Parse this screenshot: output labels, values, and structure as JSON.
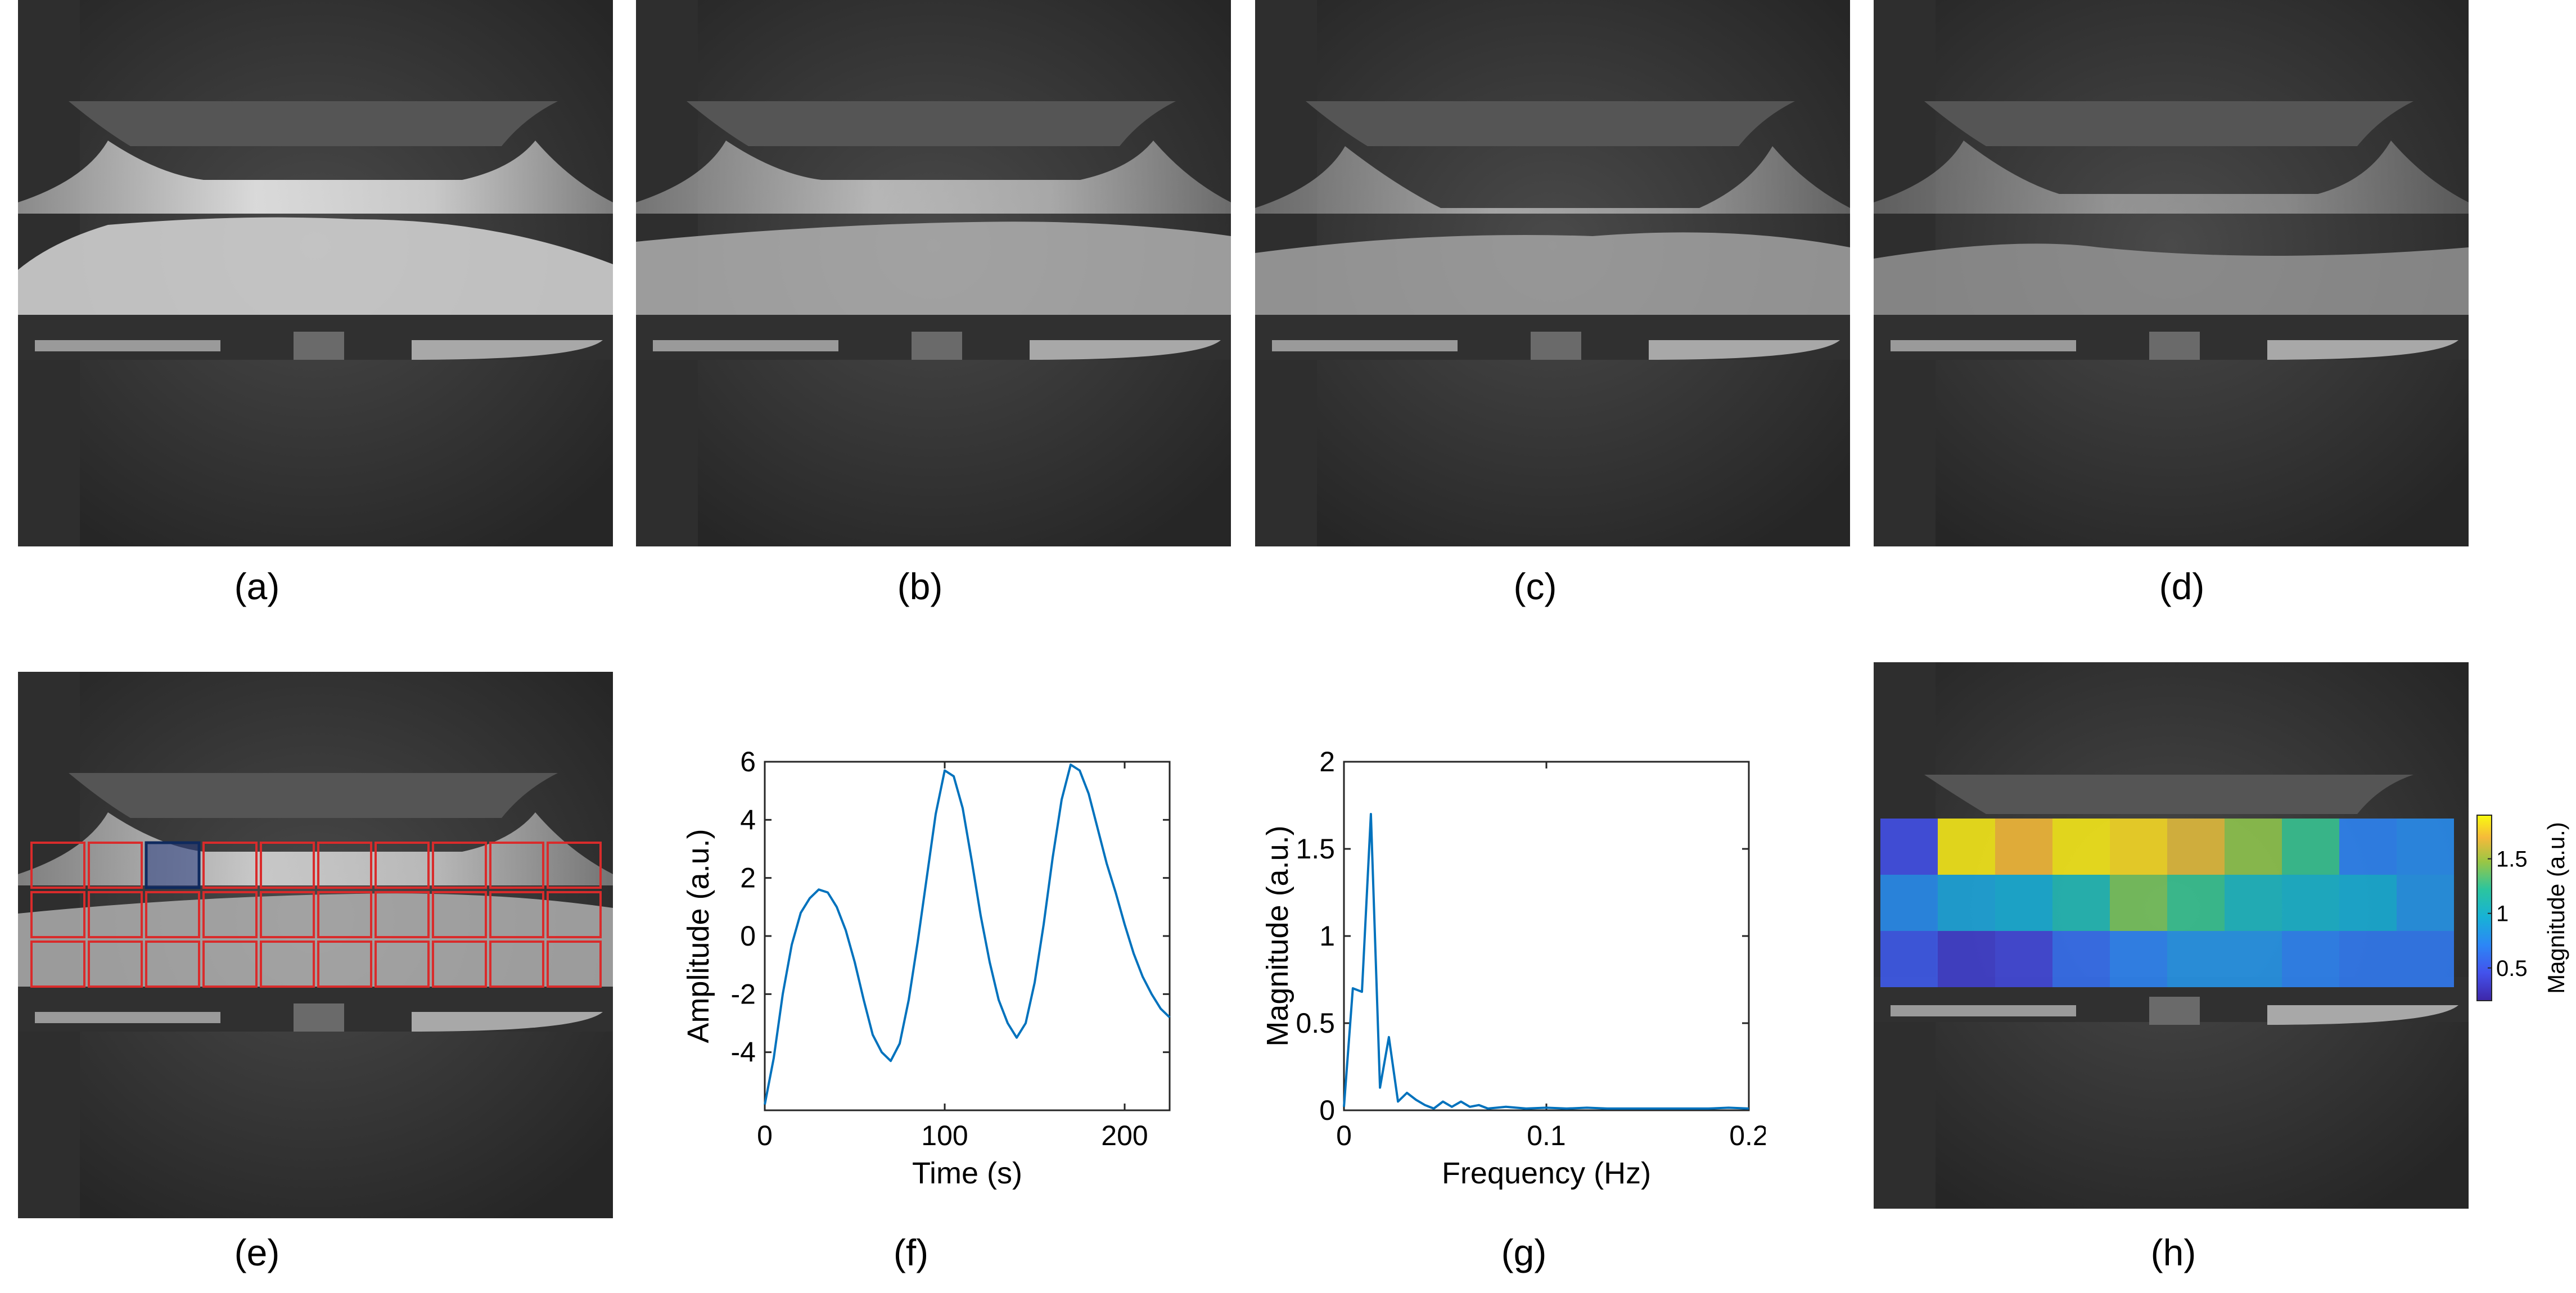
{
  "captions": {
    "a": "(a)",
    "b": "(b)",
    "c": "(c)",
    "d": "(d)",
    "e": "(e)",
    "f": "(f)",
    "g": "(g)",
    "h": "(h)"
  },
  "chart_data": [
    {
      "id": "f",
      "type": "line",
      "xlabel": "Time (s)",
      "ylabel": "Amplitude (a.u.)",
      "xlim": [
        0,
        225
      ],
      "ylim": [
        -6,
        6
      ],
      "xticks": [
        "0",
        "100",
        "200"
      ],
      "yticks": [
        "6",
        "4",
        "2",
        "0",
        "-2",
        "-4"
      ],
      "series": [
        {
          "color": "#0072BD",
          "x": [
            0,
            5,
            10,
            15,
            20,
            25,
            30,
            35,
            40,
            45,
            50,
            55,
            60,
            65,
            70,
            75,
            80,
            85,
            90,
            95,
            100,
            105,
            110,
            115,
            120,
            125,
            130,
            135,
            140,
            145,
            150,
            155,
            160,
            165,
            170,
            175,
            180,
            185,
            190,
            195,
            200,
            205,
            210,
            215,
            220,
            225
          ],
          "y": [
            -5.8,
            -4.2,
            -2.0,
            -0.3,
            0.8,
            1.3,
            1.6,
            1.5,
            1.0,
            0.2,
            -0.9,
            -2.2,
            -3.4,
            -4.0,
            -4.3,
            -3.7,
            -2.2,
            -0.2,
            2.0,
            4.2,
            5.7,
            5.5,
            4.4,
            2.6,
            0.7,
            -0.9,
            -2.2,
            -3.0,
            -3.5,
            -3.0,
            -1.6,
            0.4,
            2.7,
            4.7,
            5.9,
            5.7,
            4.9,
            3.7,
            2.5,
            1.5,
            0.4,
            -0.6,
            -1.4,
            -2.0,
            -2.5,
            -2.8
          ]
        }
      ]
    },
    {
      "id": "g",
      "type": "line",
      "xlabel": "Frequency (Hz)",
      "ylabel": "Magnitude (a.u.)",
      "xlim": [
        0,
        0.2
      ],
      "ylim": [
        0,
        2
      ],
      "xticks": [
        "0",
        "0.1",
        "0.2"
      ],
      "yticks": [
        "2",
        "1.5",
        "1",
        "0.5",
        "0"
      ],
      "series": [
        {
          "color": "#0072BD",
          "x": [
            0,
            0.0044,
            0.0089,
            0.0133,
            0.0178,
            0.0222,
            0.0267,
            0.0311,
            0.0356,
            0.04,
            0.0444,
            0.0489,
            0.0533,
            0.0578,
            0.0622,
            0.0667,
            0.0711,
            0.08,
            0.09,
            0.1,
            0.11,
            0.12,
            0.13,
            0.14,
            0.15,
            0.16,
            0.17,
            0.18,
            0.19,
            0.2
          ],
          "y": [
            0.02,
            0.7,
            0.68,
            1.7,
            0.13,
            0.42,
            0.05,
            0.1,
            0.06,
            0.03,
            0.01,
            0.05,
            0.02,
            0.05,
            0.02,
            0.03,
            0.01,
            0.02,
            0.01,
            0.015,
            0.01,
            0.015,
            0.01,
            0.01,
            0.01,
            0.01,
            0.01,
            0.01,
            0.015,
            0.01
          ]
        }
      ]
    },
    {
      "id": "h",
      "type": "heatmap",
      "colorbar_label": "Magnitude (a.u.)",
      "colorbar_ticks": [
        "1.5",
        "1",
        "0.5"
      ],
      "colorbar_range": [
        0.2,
        1.9
      ],
      "rows": 3,
      "cols": 10,
      "values": [
        [
          0.45,
          1.85,
          1.7,
          1.85,
          1.8,
          1.65,
          1.45,
          1.25,
          0.7,
          0.75
        ],
        [
          0.75,
          0.9,
          0.95,
          1.1,
          1.4,
          1.25,
          1.05,
          1.0,
          0.95,
          0.8
        ],
        [
          0.5,
          0.35,
          0.4,
          0.6,
          0.7,
          0.8,
          0.8,
          0.7,
          0.65,
          0.65
        ]
      ]
    }
  ],
  "grid_e": {
    "rows": 3,
    "cols": 10,
    "highlight_row": 0,
    "highlight_col": 2
  },
  "colors": {
    "grid_red": "#d92b2b",
    "highlight_blue": "#0f2a5e",
    "line_blue": "#0072BD"
  }
}
